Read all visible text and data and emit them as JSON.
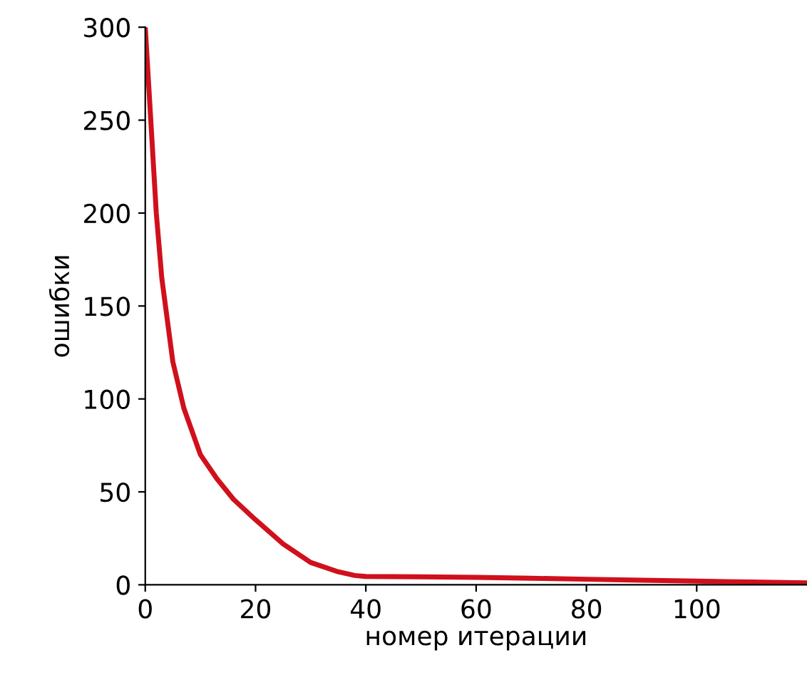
{
  "chart_data": {
    "type": "line",
    "xlabel": "номер итерации",
    "ylabel": "ошибки",
    "x": [
      0,
      1,
      2,
      3,
      5,
      7,
      10,
      13,
      16,
      20,
      25,
      30,
      35,
      38,
      40,
      50,
      60,
      70,
      80,
      90,
      100,
      110,
      120
    ],
    "series": [
      {
        "color": "#d0101c",
        "values": [
          300,
          250,
          200,
          165,
          120,
          95,
          70,
          57,
          46,
          35,
          22,
          12,
          7,
          5,
          4.5,
          4.3,
          4,
          3.5,
          3,
          2.5,
          2,
          1.5,
          1
        ]
      }
    ],
    "xlim": [
      0,
      120
    ],
    "ylim": [
      0,
      300
    ],
    "xticks": [
      0,
      20,
      40,
      60,
      80,
      100
    ],
    "yticks": [
      0,
      50,
      100,
      150,
      200,
      250,
      300
    ],
    "grid": false,
    "legend": false,
    "marker": "none",
    "line_style": "solid"
  }
}
